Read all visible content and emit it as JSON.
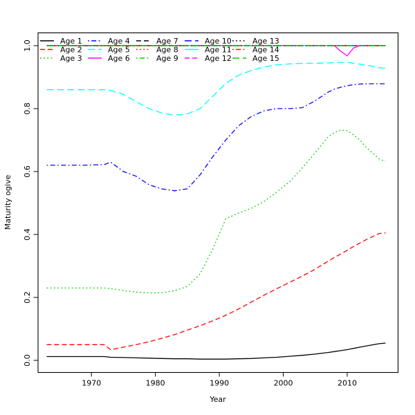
{
  "figure": {
    "background": "#ffffff"
  },
  "chart_data": {
    "type": "line",
    "title": "",
    "xlabel": "Year",
    "ylabel": "Maturity ogive",
    "x_ticks": [
      1970,
      1980,
      1990,
      2000,
      2010
    ],
    "y_ticks": [
      "0.0",
      "0.2",
      "0.4",
      "0.6",
      "0.8",
      "1.0"
    ],
    "xlim": [
      1961.8,
      2018.0
    ],
    "ylim": [
      -0.04,
      1.04
    ],
    "grid": "off",
    "legend": {
      "position": "top-left",
      "columns": 5,
      "rows": 3,
      "order": "column-major"
    },
    "years": [
      1963,
      1966,
      1969,
      1972,
      1973,
      1975,
      1977,
      1979,
      1981,
      1983,
      1985,
      1987,
      1989,
      1991,
      1993,
      1995,
      1997,
      1999,
      2001,
      2003,
      2005,
      2007,
      2008,
      2009,
      2010,
      2011,
      2012,
      2013,
      2015,
      2016
    ],
    "series": [
      {
        "name": "Age 1",
        "color": "#000000",
        "linetype": "solid",
        "values": [
          0.012,
          0.012,
          0.012,
          0.012,
          0.01,
          0.009,
          0.008,
          0.007,
          0.006,
          0.005,
          0.005,
          0.004,
          0.004,
          0.004,
          0.005,
          0.006,
          0.008,
          0.01,
          0.013,
          0.016,
          0.02,
          0.025,
          0.028,
          0.031,
          0.034,
          0.038,
          0.042,
          0.046,
          0.053,
          0.055
        ]
      },
      {
        "name": "Age 2",
        "color": "#FF0000",
        "linetype": "dashed",
        "values": [
          0.05,
          0.05,
          0.05,
          0.05,
          0.034,
          0.042,
          0.05,
          0.059,
          0.07,
          0.082,
          0.096,
          0.11,
          0.126,
          0.143,
          0.163,
          0.185,
          0.207,
          0.228,
          0.248,
          0.268,
          0.29,
          0.315,
          0.327,
          0.338,
          0.35,
          0.362,
          0.373,
          0.384,
          0.403,
          0.405
        ]
      },
      {
        "name": "Age 3",
        "color": "#00CD00",
        "linetype": "dotted",
        "values": [
          0.23,
          0.23,
          0.23,
          0.23,
          0.228,
          0.222,
          0.217,
          0.214,
          0.215,
          0.221,
          0.235,
          0.275,
          0.355,
          0.45,
          0.468,
          0.483,
          0.505,
          0.535,
          0.568,
          0.612,
          0.66,
          0.71,
          0.724,
          0.732,
          0.73,
          0.716,
          0.7,
          0.676,
          0.64,
          0.632
        ]
      },
      {
        "name": "Age 4",
        "color": "#0000FF",
        "linetype": "dotdash",
        "values": [
          0.62,
          0.62,
          0.62,
          0.622,
          0.63,
          0.6,
          0.585,
          0.558,
          0.545,
          0.539,
          0.545,
          0.59,
          0.648,
          0.7,
          0.745,
          0.775,
          0.793,
          0.8,
          0.8,
          0.803,
          0.825,
          0.852,
          0.862,
          0.868,
          0.873,
          0.876,
          0.878,
          0.879,
          0.879,
          0.879
        ]
      },
      {
        "name": "Age 5",
        "color": "#00FFFF",
        "linetype": "longdash",
        "values": [
          0.86,
          0.86,
          0.86,
          0.86,
          0.858,
          0.845,
          0.822,
          0.8,
          0.786,
          0.779,
          0.783,
          0.8,
          0.84,
          0.88,
          0.906,
          0.921,
          0.932,
          0.939,
          0.942,
          0.944,
          0.944,
          0.945,
          0.946,
          0.947,
          0.947,
          0.944,
          0.941,
          0.938,
          0.93,
          0.928
        ]
      },
      {
        "name": "Age 6",
        "color": "#FF00FF",
        "linetype": "solid",
        "values": [
          1,
          1,
          1,
          1,
          1,
          1,
          1,
          1,
          1,
          1,
          1,
          1,
          1,
          1,
          1,
          1,
          1,
          1,
          1,
          1,
          1,
          1,
          1,
          0.982,
          0.968,
          0.993,
          1,
          1,
          1,
          1
        ]
      },
      {
        "name": "Age 7",
        "color": "#000000",
        "linetype": "dashed",
        "constant": 1.0
      },
      {
        "name": "Age 8",
        "color": "#FF0000",
        "linetype": "dotted",
        "constant": 1.0
      },
      {
        "name": "Age 9",
        "color": "#00CD00",
        "linetype": "dotdash",
        "constant": 1.0
      },
      {
        "name": "Age 10",
        "color": "#0000FF",
        "linetype": "longdash",
        "constant": 1.0
      },
      {
        "name": "Age 11",
        "color": "#00FFFF",
        "linetype": "solid",
        "constant": 1.0
      },
      {
        "name": "Age 12",
        "color": "#FF00FF",
        "linetype": "dashed",
        "constant": 1.0
      },
      {
        "name": "Age 13",
        "color": "#000000",
        "linetype": "dotted",
        "constant": 1.0
      },
      {
        "name": "Age 14",
        "color": "#FF0000",
        "linetype": "dotdash",
        "constant": 1.0
      },
      {
        "name": "Age 15",
        "color": "#00CD00",
        "linetype": "longdash",
        "constant": 1.0
      }
    ]
  }
}
